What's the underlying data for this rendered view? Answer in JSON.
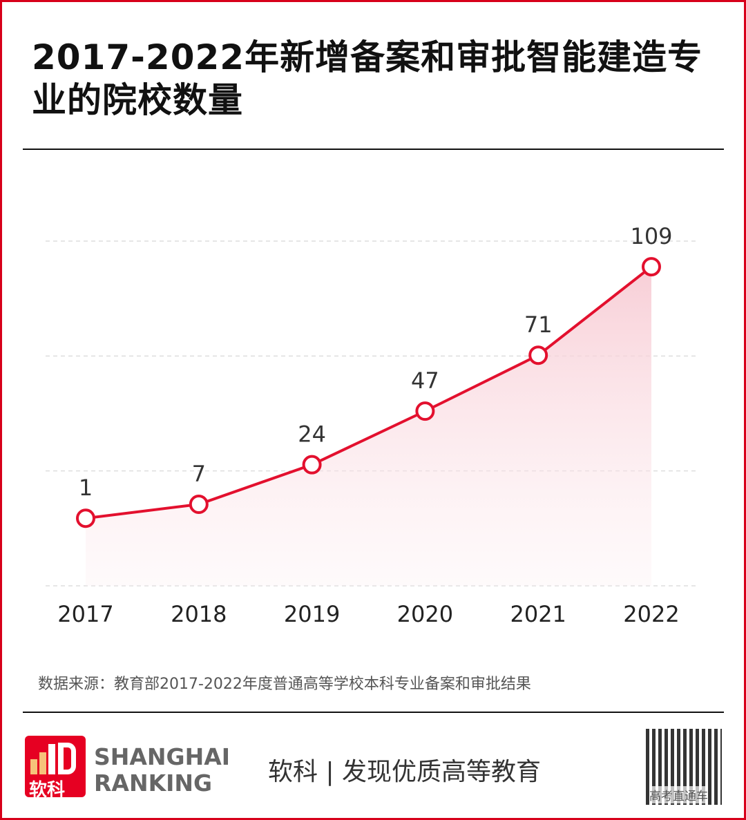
{
  "title": "2017-2022年新增备案和审批智能建造专业的院校数量",
  "chart_data": {
    "type": "area",
    "title": "2017-2022年新增备案和审批智能建造专业的院校数量",
    "categories": [
      "2017",
      "2018",
      "2019",
      "2020",
      "2021",
      "2022"
    ],
    "values": [
      1,
      7,
      24,
      47,
      71,
      109
    ],
    "data_labels": [
      "1",
      "7",
      "24",
      "47",
      "71",
      "109"
    ],
    "xlabel": "",
    "ylabel": "",
    "grid": true,
    "colors": {
      "line": "#e3102e",
      "fill": "#f7c9d2",
      "marker_fill": "#ffffff"
    }
  },
  "source": "数据来源：教育部2017-2022年度普通高等学校本科专业备案和审批结果",
  "footer": {
    "logo_text": "软科",
    "brand_line1": "SHANGHAI",
    "brand_line2": "RANKING",
    "slogan": "软科 | 发现优质高等教育",
    "qr_caption": "高考直通车"
  }
}
